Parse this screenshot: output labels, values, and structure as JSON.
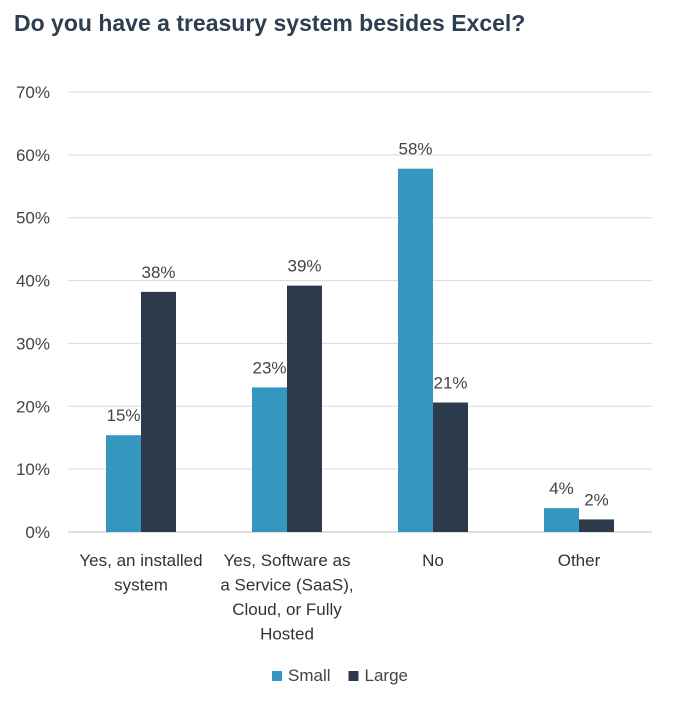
{
  "chart_data": {
    "type": "bar",
    "title": "Do you have a treasury system besides Excel?",
    "categories": [
      [
        "Yes, an installed",
        "system"
      ],
      [
        "Yes, Software as",
        "a Service (SaaS),",
        "Cloud, or Fully",
        "Hosted"
      ],
      [
        "No"
      ],
      [
        "Other"
      ]
    ],
    "series": [
      {
        "name": "Small",
        "values": [
          15.4,
          23,
          57.8,
          3.8
        ],
        "labels": [
          "15%",
          "23%",
          "58%",
          "4%"
        ],
        "color": "#3597c0"
      },
      {
        "name": "Large",
        "values": [
          38.2,
          39.2,
          20.6,
          2
        ],
        "labels": [
          "38%",
          "39%",
          "21%",
          "2%"
        ],
        "color": "#2c3a4c"
      }
    ],
    "yticks": [
      "0%",
      "10%",
      "20%",
      "30%",
      "40%",
      "50%",
      "60%",
      "70%"
    ],
    "ylim": [
      0,
      70
    ],
    "grid": true,
    "legend_position": "bottom"
  }
}
